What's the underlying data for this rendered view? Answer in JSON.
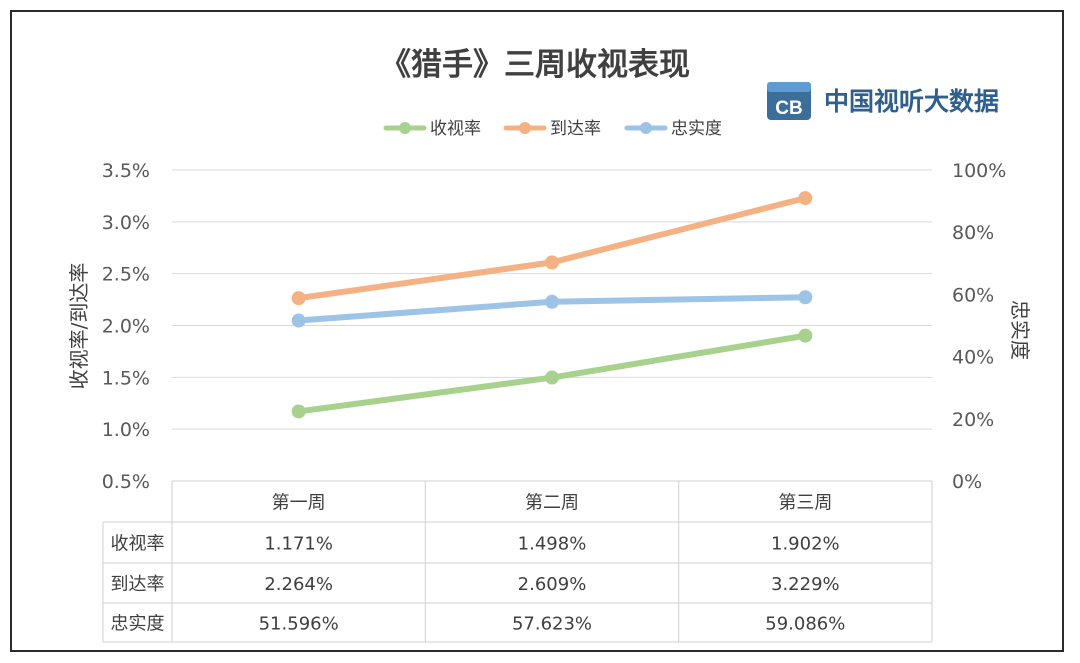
{
  "chart_data": {
    "type": "line",
    "title": "《猎手》三周收视表现",
    "categories": [
      "第一周",
      "第二周",
      "第三周"
    ],
    "series": [
      {
        "name": "收视率",
        "axis": "left",
        "color": "#a9d18e",
        "values": [
          1.171,
          1.498,
          1.902
        ],
        "labels": [
          "1.171%",
          "1.498%",
          "1.902%"
        ]
      },
      {
        "name": "到达率",
        "axis": "left",
        "color": "#f4b183",
        "values": [
          2.264,
          2.609,
          3.229
        ],
        "labels": [
          "2.264%",
          "2.609%",
          "3.229%"
        ]
      },
      {
        "name": "忠实度",
        "axis": "right",
        "color": "#9dc3e6",
        "values": [
          51.596,
          57.623,
          59.086
        ],
        "labels": [
          "51.596%",
          "57.623%",
          "59.086%"
        ]
      }
    ],
    "ylabel": "收视率/到达率",
    "y2label": "忠实度",
    "ylim": [
      0.5,
      3.5
    ],
    "y2lim": [
      0,
      100
    ],
    "yticks": [
      "0.5%",
      "1.0%",
      "1.5%",
      "2.0%",
      "2.5%",
      "3.0%",
      "3.5%"
    ],
    "y2ticks": [
      "0%",
      "20%",
      "40%",
      "60%",
      "80%",
      "100%"
    ],
    "grid": true,
    "legend": "top",
    "data_table": true
  },
  "brand": {
    "name": "中国视听大数据",
    "logo_letters": "CB"
  }
}
